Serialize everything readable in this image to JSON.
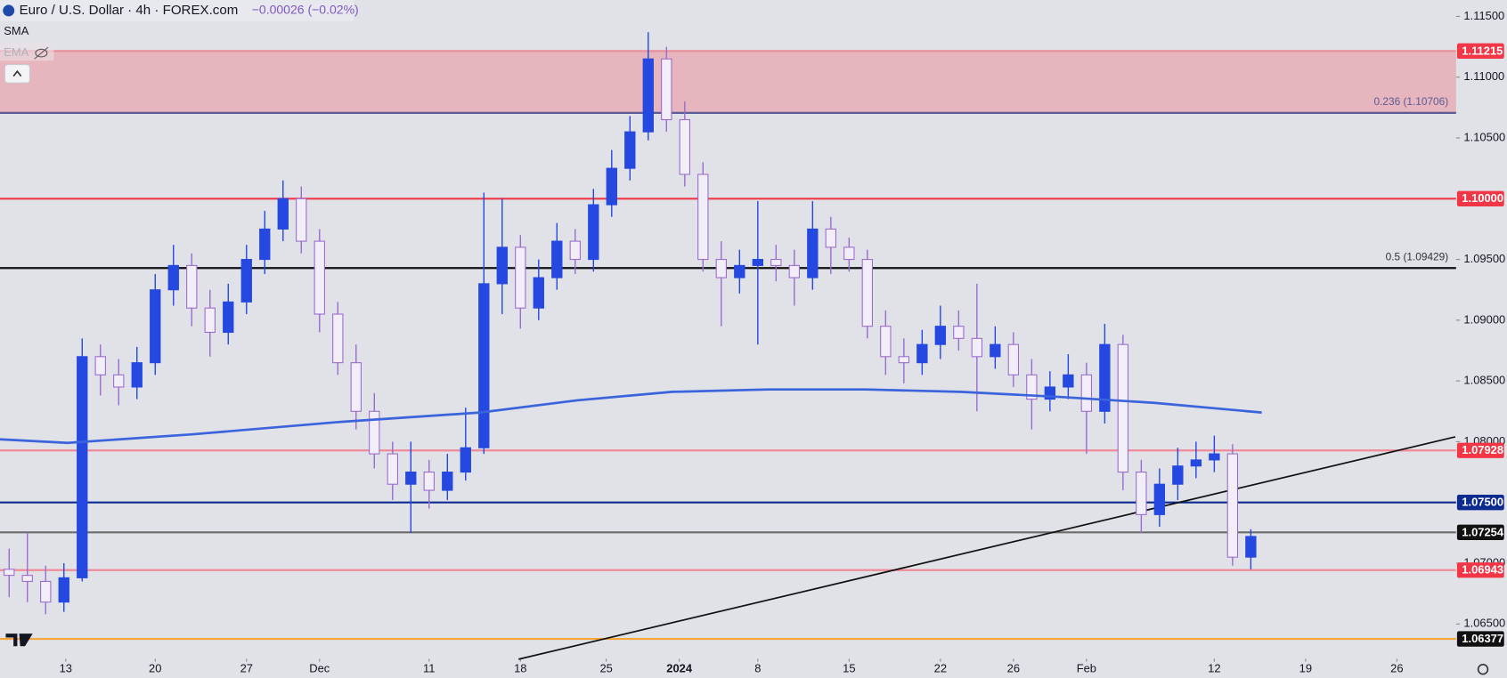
{
  "chart_data": {
    "type": "candlestick",
    "title": "Euro / U.S. Dollar · 4h · FOREX.com",
    "change": "−0.00026 (−0.02%)",
    "indicators": [
      "SMA",
      "EMA"
    ],
    "up_color": "#2448e0",
    "down_color": "#9a6bd0",
    "x": [
      0.5,
      1.5,
      2.5,
      3.5,
      4.5,
      5.5,
      6.5,
      7.5,
      8.5,
      9.5,
      10.5,
      11.5,
      12.5,
      13.5,
      14.5,
      15.5,
      16.5,
      17.5,
      18.5,
      19.5,
      20.5,
      21.5,
      22.5,
      23.5,
      24.5,
      25.5,
      26.5,
      27.5,
      28.5,
      29.5,
      30.5,
      31.5,
      32.5,
      33.5,
      34.5,
      35.5,
      36.5,
      37.5,
      38.5,
      39.5,
      40.5,
      41.5,
      42.5,
      43.5,
      44.5,
      45.5,
      46.5,
      47.5,
      48.5,
      49.5,
      50.5,
      51.5,
      52.5,
      53.5,
      54.5,
      55.5,
      56.5,
      57.5,
      58.5,
      59.5,
      60.5,
      61.5,
      62.5,
      63.5,
      64.5,
      65.5,
      66.5,
      67.5,
      68.5
    ],
    "open": [
      1.0695,
      1.069,
      1.0685,
      1.0668,
      1.0688,
      1.087,
      1.0855,
      1.0845,
      1.0865,
      1.0925,
      1.0945,
      1.091,
      1.089,
      1.0915,
      1.095,
      1.0975,
      1.1,
      1.0965,
      1.0905,
      1.0865,
      1.0825,
      1.079,
      1.0765,
      1.0775,
      1.076,
      1.0775,
      1.0795,
      1.093,
      1.096,
      1.091,
      1.0935,
      1.0965,
      1.095,
      1.0995,
      1.1025,
      1.1055,
      1.1115,
      1.1065,
      1.102,
      1.095,
      1.0935,
      1.0945,
      1.095,
      1.0945,
      1.0935,
      1.0975,
      1.096,
      1.095,
      1.0895,
      1.087,
      1.0865,
      1.088,
      1.0895,
      1.0885,
      1.087,
      1.088,
      1.0855,
      1.0835,
      1.0845,
      1.0855,
      1.0825,
      1.088,
      1.0775,
      1.074,
      1.0765,
      1.078,
      1.0785,
      1.079,
      1.0705
    ],
    "high": [
      1.0712,
      1.0725,
      1.0698,
      1.07,
      1.0885,
      1.088,
      1.0868,
      1.0878,
      1.0938,
      1.0962,
      1.0955,
      1.0925,
      1.093,
      1.0962,
      1.099,
      1.1015,
      1.101,
      1.0975,
      1.0915,
      1.088,
      1.084,
      1.08,
      1.08,
      1.0785,
      1.079,
      1.0828,
      1.1005,
      1.1,
      1.097,
      1.095,
      1.098,
      1.0975,
      1.1008,
      1.104,
      1.1068,
      1.1137,
      1.1125,
      1.108,
      1.103,
      1.0965,
      1.0958,
      1.0998,
      1.0962,
      1.0958,
      1.0998,
      1.0985,
      1.0968,
      1.0958,
      1.0908,
      1.0885,
      1.0892,
      1.0912,
      1.0908,
      1.093,
      1.0895,
      1.089,
      1.0868,
      1.0858,
      1.0872,
      1.0865,
      1.0897,
      1.0888,
      1.0785,
      1.0778,
      1.0795,
      1.08,
      1.0805,
      1.0798,
      1.0728
    ],
    "low": [
      1.0672,
      1.0668,
      1.0658,
      1.066,
      1.0685,
      1.0838,
      1.083,
      1.0835,
      1.0855,
      1.0912,
      1.0895,
      1.087,
      1.088,
      1.0905,
      1.0938,
      1.0965,
      1.0955,
      1.089,
      1.0855,
      1.081,
      1.0778,
      1.0752,
      1.0725,
      1.0745,
      1.0752,
      1.0768,
      1.079,
      1.0905,
      1.0893,
      1.09,
      1.0925,
      1.0938,
      1.094,
      1.0985,
      1.1015,
      1.1048,
      1.1055,
      1.101,
      1.094,
      1.0895,
      1.0922,
      1.088,
      1.0932,
      1.0912,
      1.0925,
      1.0938,
      1.094,
      1.0885,
      1.0855,
      1.0848,
      1.0855,
      1.0868,
      1.0875,
      1.0825,
      1.086,
      1.0845,
      1.081,
      1.0825,
      1.0835,
      1.079,
      1.0815,
      1.076,
      1.0725,
      1.073,
      1.0752,
      1.077,
      1.0775,
      1.0698,
      1.0695
    ],
    "close": [
      1.069,
      1.0685,
      1.0668,
      1.0688,
      1.087,
      1.0855,
      1.0845,
      1.0865,
      1.0925,
      1.0945,
      1.091,
      1.089,
      1.0915,
      1.095,
      1.0975,
      1.1,
      1.0965,
      1.0905,
      1.0865,
      1.0825,
      1.079,
      1.0765,
      1.0775,
      1.076,
      1.0775,
      1.0795,
      1.093,
      1.096,
      1.091,
      1.0935,
      1.0965,
      1.095,
      1.0995,
      1.1025,
      1.1055,
      1.1115,
      1.1065,
      1.102,
      1.095,
      1.0935,
      1.0945,
      1.095,
      1.0945,
      1.0935,
      1.0975,
      1.096,
      1.095,
      1.0895,
      1.087,
      1.0865,
      1.088,
      1.0895,
      1.0885,
      1.087,
      1.088,
      1.0855,
      1.0835,
      1.0845,
      1.0855,
      1.0825,
      1.088,
      1.0775,
      1.074,
      1.0765,
      1.078,
      1.0785,
      1.079,
      1.0705,
      1.0722
    ],
    "sma": {
      "color": "#3b63dc",
      "x": [
        0,
        3.7,
        10.5,
        18.4,
        26.3,
        31.6,
        36.8,
        42.1,
        47.4,
        52.6,
        57.9,
        63.2,
        69.1
      ],
      "values": [
        1.0802,
        1.0799,
        1.0806,
        1.0816,
        1.0824,
        1.0834,
        1.0841,
        1.0843,
        1.0843,
        1.0841,
        1.0837,
        1.0832,
        1.0824
      ]
    },
    "trendline": {
      "color": "#111111",
      "x": [
        28.4,
        79.7
      ],
      "values": [
        1.0621,
        1.0804
      ]
    },
    "zone": {
      "from": 1.10706,
      "to": 1.11215,
      "color": "#e6b5bd"
    },
    "levels": [
      {
        "value": 1.11215,
        "label": "1.11215",
        "line_color": "#e88f9b",
        "label_color": "#f23645"
      },
      {
        "value": 1.10706,
        "line_color": "#5b5b95",
        "note": "0.236 (1.10706)",
        "note_color": "#5b5b95"
      },
      {
        "value": 1.1,
        "label": "1.10000",
        "line_color": "#f23645",
        "label_color": "#f23645"
      },
      {
        "value": 1.09429,
        "line_color": "#111111",
        "note": "0.5 (1.09429)",
        "note_color": "#333333"
      },
      {
        "value": 1.07928,
        "label": "1.07928",
        "line_color": "#f08a98",
        "label_color": "#f23645"
      },
      {
        "value": 1.075,
        "label": "1.07500",
        "line_color": "#0d2a8f",
        "label_color": "#0d2a8f"
      },
      {
        "value": 1.07254,
        "label": "1.07254",
        "line_color": "#6b6b6b",
        "label_color": "#111111"
      },
      {
        "value": 1.06943,
        "label": "1.06943",
        "line_color": "#f08a98",
        "label_color": "#f23645"
      },
      {
        "value": 1.06377,
        "label": "1.06377",
        "line_color": "#f7a535",
        "label_color": "#111111"
      }
    ],
    "xlim": [
      0,
      79.74
    ],
    "ylim": [
      1.06214,
      1.11635
    ],
    "yticks": [
      {
        "value": 1.115,
        "label": "1.11500"
      },
      {
        "value": 1.11,
        "label": "1.11000"
      },
      {
        "value": 1.105,
        "label": "1.10500"
      },
      {
        "value": 1.095,
        "label": "1.09500"
      },
      {
        "value": 1.09,
        "label": "1.09000"
      },
      {
        "value": 1.085,
        "label": "1.08500"
      },
      {
        "value": 1.08,
        "label": "1.08000"
      },
      {
        "value": 1.07,
        "label": "1.07000"
      },
      {
        "value": 1.065,
        "label": "1.06500"
      }
    ],
    "xticks": [
      {
        "value": 3.6,
        "label": "13"
      },
      {
        "value": 8.5,
        "label": "20"
      },
      {
        "value": 13.5,
        "label": "27"
      },
      {
        "value": 17.5,
        "label": "Dec"
      },
      {
        "value": 23.5,
        "label": "11"
      },
      {
        "value": 28.5,
        "label": "18"
      },
      {
        "value": 33.2,
        "label": "25"
      },
      {
        "value": 37.2,
        "label": "2024"
      },
      {
        "value": 41.5,
        "label": "8"
      },
      {
        "value": 46.5,
        "label": "15"
      },
      {
        "value": 51.5,
        "label": "22"
      },
      {
        "value": 55.5,
        "label": "26"
      },
      {
        "value": 59.5,
        "label": "Feb"
      },
      {
        "value": 66.5,
        "label": "12"
      },
      {
        "value": 71.5,
        "label": "19"
      },
      {
        "value": 76.5,
        "label": "26"
      }
    ],
    "grid": false
  }
}
